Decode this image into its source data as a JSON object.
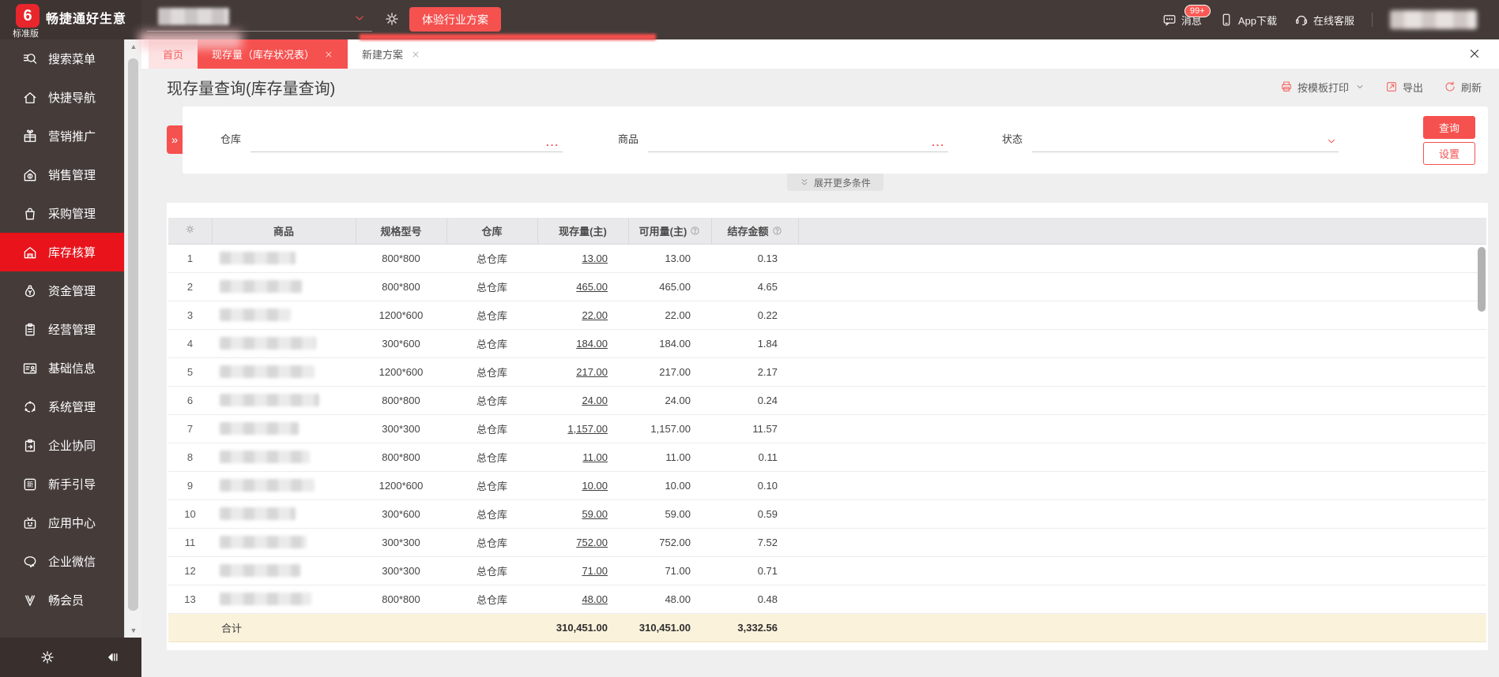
{
  "topbar": {
    "logo_glyph": "6",
    "logo_title": "畅捷通好生意",
    "logo_subtitle": "标准版",
    "trial_button": "体验行业方案",
    "messages_label": "消息",
    "messages_badge": "99+",
    "app_download_label": "App下载",
    "online_service_label": "在线客服"
  },
  "tabbar": {
    "home_tab": "首页",
    "active_tab": "现存量（库存状况表）",
    "third_tab": "新建方案"
  },
  "page": {
    "title": "现存量查询(库存量查询)",
    "print_label": "按模板打印",
    "export_label": "导出",
    "refresh_label": "刷新"
  },
  "filters": {
    "warehouse_label": "仓库",
    "product_label": "商品",
    "status_label": "状态",
    "ellipsis": "...",
    "query_button": "查询",
    "settings_button": "设置",
    "expand_more": "展开更多条件",
    "collapse_glyph": "»"
  },
  "sidebar": {
    "items": [
      {
        "label": "搜索菜单",
        "icon": "search-icon",
        "active": false
      },
      {
        "label": "快捷导航",
        "icon": "home-icon",
        "active": false
      },
      {
        "label": "营销推广",
        "icon": "gift-icon",
        "active": false
      },
      {
        "label": "销售管理",
        "icon": "sales-icon",
        "active": false
      },
      {
        "label": "采购管理",
        "icon": "purchase-bag-icon",
        "active": false
      },
      {
        "label": "库存核算",
        "icon": "warehouse-icon",
        "active": true
      },
      {
        "label": "资金管理",
        "icon": "money-pouch-icon",
        "active": false
      },
      {
        "label": "经营管理",
        "icon": "clipboard-icon",
        "active": false
      },
      {
        "label": "基础信息",
        "icon": "id-card-icon",
        "active": false
      },
      {
        "label": "系统管理",
        "icon": "sync-icon",
        "active": false
      },
      {
        "label": "企业协同",
        "icon": "collab-icon",
        "active": false
      },
      {
        "label": "新手引导",
        "icon": "newbie-icon",
        "active": false
      },
      {
        "label": "应用中心",
        "icon": "app-center-icon",
        "active": false
      },
      {
        "label": "企业微信",
        "icon": "wechat-icon",
        "active": false
      },
      {
        "label": "畅会员",
        "icon": "member-v-icon",
        "active": false
      }
    ]
  },
  "table": {
    "col_product": "商品",
    "col_spec": "规格型号",
    "col_warehouse": "仓库",
    "col_qty": "现存量(主)",
    "col_available": "可用量(主)",
    "col_amount": "结存金额",
    "rows": [
      {
        "no": "1",
        "spec": "800*800",
        "warehouse": "总仓库",
        "qty": "13.00",
        "available": "13.00",
        "amount": "0.13",
        "blur": 96
      },
      {
        "no": "2",
        "spec": "800*800",
        "warehouse": "总仓库",
        "qty": "465.00",
        "available": "465.00",
        "amount": "4.65",
        "blur": 104
      },
      {
        "no": "3",
        "spec": "1200*600",
        "warehouse": "总仓库",
        "qty": "22.00",
        "available": "22.00",
        "amount": "0.22",
        "blur": 90
      },
      {
        "no": "4",
        "spec": "300*600",
        "warehouse": "总仓库",
        "qty": "184.00",
        "available": "184.00",
        "amount": "1.84",
        "blur": 122
      },
      {
        "no": "5",
        "spec": "1200*600",
        "warehouse": "总仓库",
        "qty": "217.00",
        "available": "217.00",
        "amount": "2.17",
        "blur": 120
      },
      {
        "no": "6",
        "spec": "800*800",
        "warehouse": "总仓库",
        "qty": "24.00",
        "available": "24.00",
        "amount": "0.24",
        "blur": 126
      },
      {
        "no": "7",
        "spec": "300*300",
        "warehouse": "总仓库",
        "qty": "1,157.00",
        "available": "1,157.00",
        "amount": "11.57",
        "blur": 100
      },
      {
        "no": "8",
        "spec": "800*800",
        "warehouse": "总仓库",
        "qty": "11.00",
        "available": "11.00",
        "amount": "0.11",
        "blur": 114
      },
      {
        "no": "9",
        "spec": "1200*600",
        "warehouse": "总仓库",
        "qty": "10.00",
        "available": "10.00",
        "amount": "0.10",
        "blur": 120
      },
      {
        "no": "10",
        "spec": "300*600",
        "warehouse": "总仓库",
        "qty": "59.00",
        "available": "59.00",
        "amount": "0.59",
        "blur": 96
      },
      {
        "no": "11",
        "spec": "300*300",
        "warehouse": "总仓库",
        "qty": "752.00",
        "available": "752.00",
        "amount": "7.52",
        "blur": 110
      },
      {
        "no": "12",
        "spec": "300*300",
        "warehouse": "总仓库",
        "qty": "71.00",
        "available": "71.00",
        "amount": "0.71",
        "blur": 102
      },
      {
        "no": "13",
        "spec": "800*800",
        "warehouse": "总仓库",
        "qty": "48.00",
        "available": "48.00",
        "amount": "0.48",
        "blur": 116
      }
    ],
    "total_label": "合计",
    "total_qty": "310,451.00",
    "total_available": "310,451.00",
    "total_amount": "3,332.56"
  },
  "colors": {
    "accent": "#f5514f",
    "sidebar_active": "#e8131b",
    "topbar_bg": "#443b39",
    "total_row_bg": "#fbf2dc"
  }
}
